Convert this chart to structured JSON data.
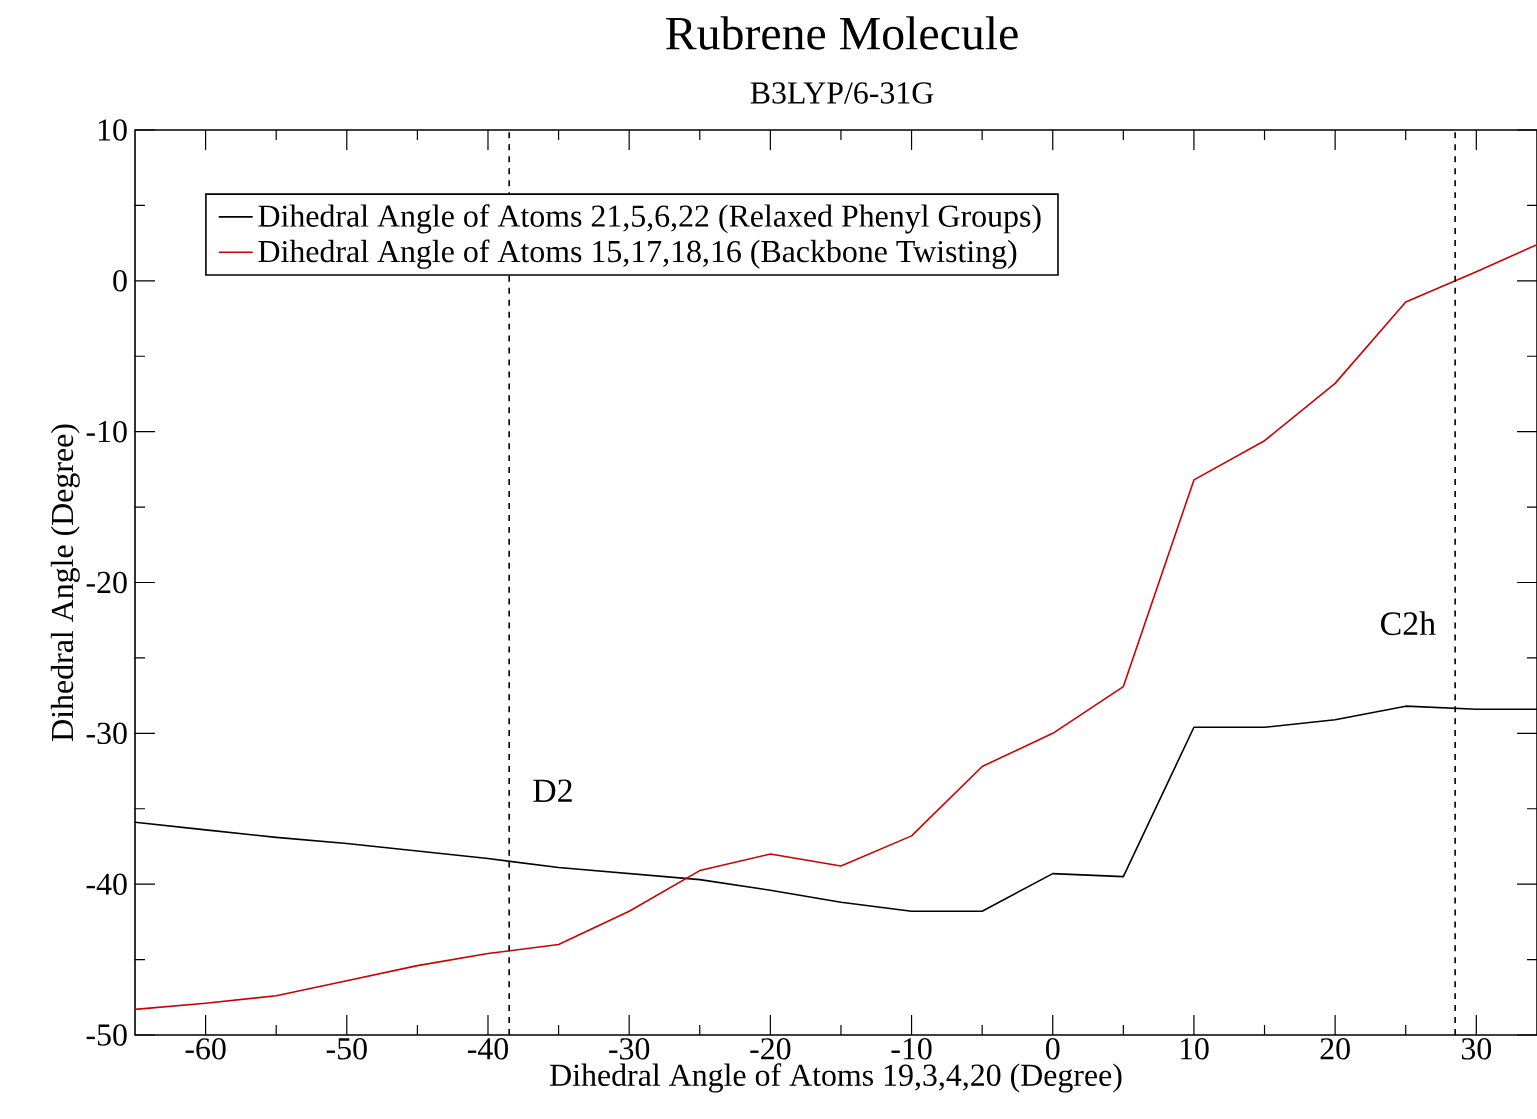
{
  "chart_data": {
    "type": "line",
    "title": "Rubrene Molecule",
    "subtitle": "B3LYP/6-31G",
    "xlabel": "Dihedral Angle of Atoms 19,3,4,20 (Degree)",
    "ylabel": "Dihedral Angle (Degree)",
    "x": [
      -65,
      -60,
      -55,
      -50,
      -45,
      -40,
      -35,
      -30,
      -25,
      -20,
      -15,
      -10,
      -5,
      0,
      5,
      10,
      15,
      20,
      25,
      30,
      34.3
    ],
    "series": [
      {
        "name": "Dihedral Angle of Atoms 21,5,6,22 (Relaxed Phenyl Groups)",
        "color": "#000000",
        "values": [
          -35.9,
          -36.4,
          -36.9,
          -37.3,
          -37.8,
          -38.3,
          -38.9,
          -39.3,
          -39.7,
          -40.4,
          -41.2,
          -41.8,
          -41.8,
          -39.3,
          -39.5,
          -29.6,
          -29.6,
          -29.1,
          -28.2,
          -28.4,
          -28.4
        ]
      },
      {
        "name": "Dihedral Angle of Atoms 15,17,18,16 (Backbone Twisting)",
        "color": "#cc0000",
        "values": [
          -48.3,
          -47.9,
          -47.4,
          -46.4,
          -45.4,
          -44.6,
          -44.0,
          -41.8,
          -39.1,
          -38.0,
          -38.8,
          -36.8,
          -32.2,
          -30.0,
          -26.9,
          -13.2,
          -10.6,
          -6.8,
          -1.4,
          0.6,
          2.4
        ]
      }
    ],
    "xlim": [
      -65,
      34.3
    ],
    "ylim": [
      -50,
      10
    ],
    "xticks": [
      -60,
      -50,
      -40,
      -30,
      -20,
      -10,
      0,
      10,
      20,
      30
    ],
    "yticks": [
      -50,
      -40,
      -30,
      -20,
      -10,
      0,
      10
    ],
    "ref_lines": [
      {
        "axis": "x",
        "value": -38.5,
        "label": "D2",
        "color": "#000000",
        "line_style": "dashed"
      },
      {
        "axis": "x",
        "value": 28.5,
        "label": "C2h",
        "color": "#000000",
        "line_style": "dashed"
      }
    ],
    "legend": "top left",
    "grid": false,
    "marker": "none",
    "line_style": "solid"
  }
}
